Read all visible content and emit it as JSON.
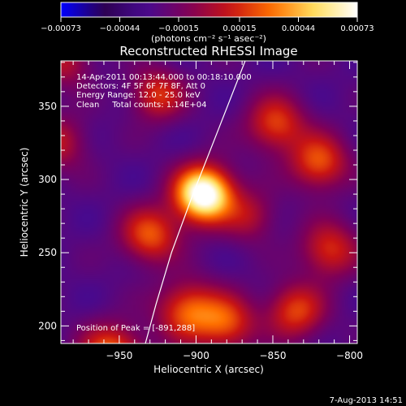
{
  "chart_data": {
    "type": "heatmap",
    "title": "Reconstructed RHESSI Image",
    "xlabel": "Heliocentric X (arcsec)",
    "ylabel": "Heliocentric Y (arcsec)",
    "xlim": [
      -988,
      -795
    ],
    "ylim": [
      188,
      381
    ],
    "x_ticks": [
      -950,
      -900,
      -850,
      -800
    ],
    "y_ticks": [
      200,
      250,
      300,
      350
    ],
    "x_tick_labels": [
      "−950",
      "−900",
      "−850",
      "−800"
    ],
    "y_tick_labels": [
      "200",
      "250",
      "300",
      "350"
    ],
    "colorbar": {
      "min": -0.00073,
      "max": 0.00073,
      "ticks": [
        -0.00073,
        -0.00044,
        -0.00015,
        0.00015,
        0.00044,
        0.00073
      ],
      "tick_labels": [
        "−0.00073",
        "−0.00044",
        "−0.00015",
        "0.00015",
        "0.00044",
        "0.00073"
      ],
      "unit_label": "(photons cm⁻² s⁻¹ asec⁻²)",
      "colors": [
        "#0000ff",
        "#2d0050",
        "#460a90",
        "#7f0058",
        "#c81414",
        "#ff7000",
        "#ffe060",
        "#ffffff"
      ]
    },
    "peak": {
      "x": -891,
      "y": 288,
      "value": 0.00073
    },
    "limb": [
      [
        -933,
        188
      ],
      [
        -926,
        215
      ],
      [
        -916,
        250
      ],
      [
        -902,
        290
      ],
      [
        -887,
        330
      ],
      [
        -868,
        381
      ]
    ],
    "blobs": [
      {
        "x": -895,
        "y": 290,
        "amp": 0.00112,
        "s": 13
      },
      {
        "x": -955,
        "y": 180,
        "amp": 0.00058,
        "s": 14
      },
      {
        "x": -930,
        "y": 262,
        "amp": 0.0005,
        "s": 13
      },
      {
        "x": -905,
        "y": 210,
        "amp": 0.00052,
        "s": 14
      },
      {
        "x": -880,
        "y": 202,
        "amp": 0.00046,
        "s": 13
      },
      {
        "x": -835,
        "y": 210,
        "amp": 0.00046,
        "s": 13
      },
      {
        "x": -813,
        "y": 252,
        "amp": 0.00042,
        "s": 13
      },
      {
        "x": -820,
        "y": 312,
        "amp": 0.0005,
        "s": 13
      },
      {
        "x": -848,
        "y": 338,
        "amp": 0.00046,
        "s": 13
      },
      {
        "x": -925,
        "y": 358,
        "amp": 0.00042,
        "s": 12
      },
      {
        "x": -990,
        "y": 325,
        "amp": 0.00032,
        "s": 13
      },
      {
        "x": -985,
        "y": 380,
        "amp": 0.0003,
        "s": 12
      },
      {
        "x": -865,
        "y": 275,
        "amp": 0.00028,
        "s": 12
      }
    ],
    "annotations": {
      "time_range": "14-Apr-2011 00:13:44.000 to 00:18:10.000",
      "detectors": "Detectors: 4F 5F 6F 7F 8F, Att 0",
      "energy": "Energy Range: 12.0 - 25.0 keV",
      "clean": "Clean     Total counts: 1.14E+04",
      "peak_position": "Position of Peak = [-891,288]"
    },
    "timestamp": "7-Aug-2013 14:51"
  }
}
